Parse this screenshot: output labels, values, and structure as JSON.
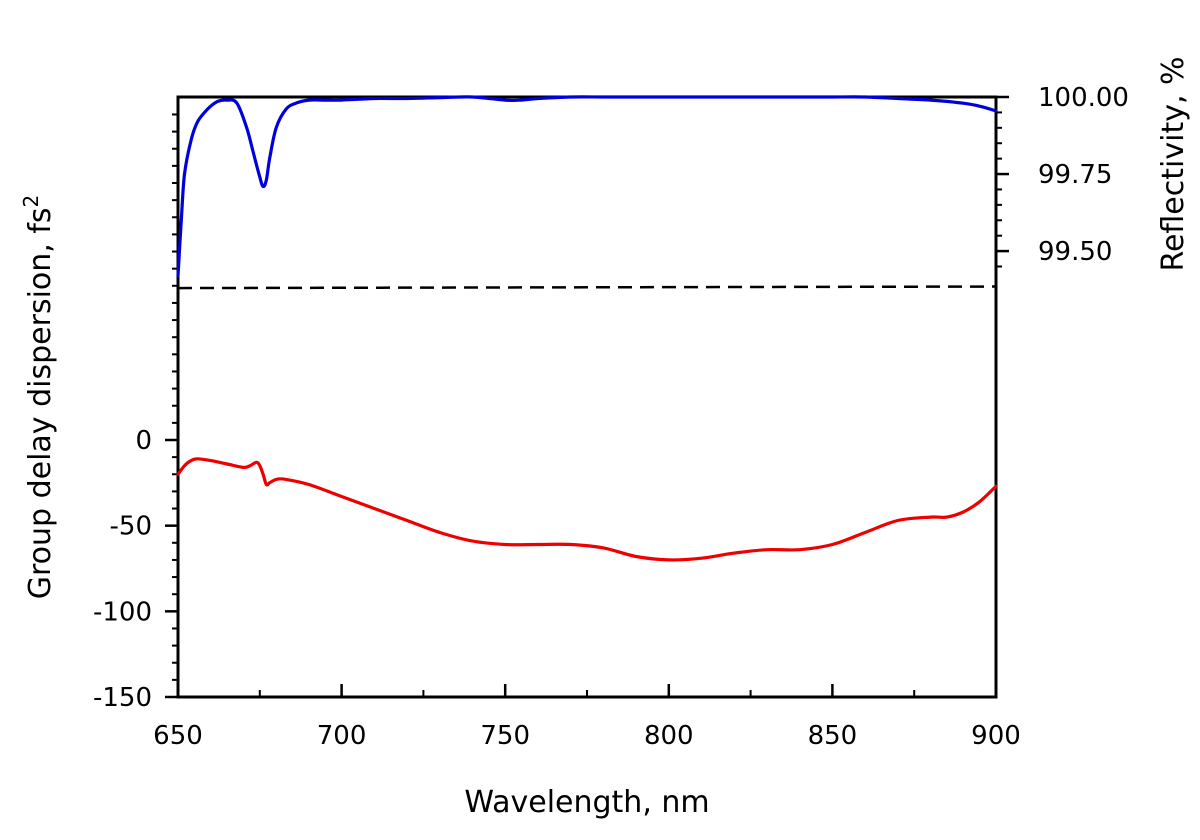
{
  "chart_data": {
    "type": "line",
    "xlabel": "Wavelength, nm",
    "ylabel_left": "Group delay dispersion, fs",
    "ylabel_left_sup": "2",
    "ylabel_right": "Reflectivity, %",
    "xlim": [
      650,
      900
    ],
    "x_ticks": [
      "650",
      "700",
      "750",
      "800",
      "850",
      "900"
    ],
    "x_tick_values": [
      650,
      700,
      750,
      800,
      850,
      900
    ],
    "gdd_ylim": [
      -150,
      0
    ],
    "gdd_ticks": [
      "0",
      "-50",
      "-100",
      "-150"
    ],
    "gdd_tick_values": [
      0,
      -50,
      -100,
      -150
    ],
    "refl_ylim": [
      99.39,
      100.0
    ],
    "refl_ticks": [
      "100.00",
      "99.75",
      "99.50"
    ],
    "refl_tick_values": [
      100.0,
      99.75,
      99.5
    ],
    "series": [
      {
        "key": "reflectivity",
        "color": "#0000dd",
        "axis": "right",
        "x": [
          650,
          651,
          652,
          654,
          656,
          659,
          662,
          665,
          668,
          671,
          673,
          675,
          676,
          677,
          678,
          680,
          683,
          686,
          690,
          695,
          700,
          710,
          720,
          730,
          740,
          750,
          755,
          760,
          770,
          780,
          790,
          800,
          810,
          820,
          830,
          840,
          850,
          860,
          870,
          880,
          890,
          895,
          900
        ],
        "y": [
          99.42,
          99.6,
          99.75,
          99.86,
          99.92,
          99.96,
          99.985,
          99.99,
          99.98,
          99.9,
          99.82,
          99.74,
          99.71,
          99.73,
          99.8,
          99.9,
          99.96,
          99.98,
          99.99,
          99.99,
          99.99,
          99.995,
          99.995,
          99.998,
          100.0,
          99.99,
          99.99,
          99.995,
          100.0,
          100.0,
          100.0,
          100.0,
          100.0,
          100.0,
          100.0,
          100.0,
          100.0,
          100.0,
          99.995,
          99.99,
          99.98,
          99.97,
          99.955
        ]
      },
      {
        "key": "gdd",
        "color": "#ee0000",
        "axis": "left",
        "x": [
          650,
          652,
          654,
          656,
          660,
          665,
          670,
          672,
          674,
          675,
          676,
          677,
          678,
          680,
          683,
          690,
          700,
          710,
          720,
          730,
          740,
          750,
          760,
          770,
          780,
          790,
          800,
          810,
          820,
          830,
          840,
          850,
          860,
          870,
          880,
          885,
          890,
          895,
          900
        ],
        "y": [
          -20,
          -15,
          -12,
          -11,
          -12,
          -14,
          -16,
          -15,
          -13,
          -15,
          -20,
          -26,
          -25,
          -23,
          -23,
          -26,
          -33,
          -40,
          -47,
          -54,
          -59,
          -61,
          -61,
          -61,
          -63,
          -68,
          -70,
          -69,
          -66,
          -64,
          -64,
          -61,
          -54,
          -47,
          -45,
          -45,
          -42,
          -36,
          -27
        ]
      }
    ],
    "reference_line": {
      "style": "dashed",
      "color": "#000000",
      "x": [
        650,
        900
      ],
      "y": [
        99.38,
        99.385
      ]
    },
    "grid": false
  }
}
